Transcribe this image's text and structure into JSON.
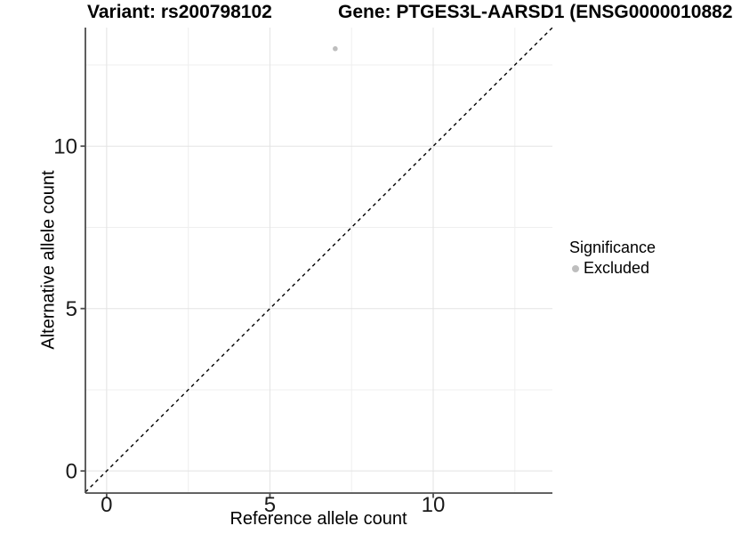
{
  "title": {
    "variant": "Variant: rs200798102",
    "gene": "Gene: PTGES3L-AARSD1 (ENSG0000010882"
  },
  "axes": {
    "x_label": "Reference allele count",
    "y_label": "Alternative allele count"
  },
  "legend": {
    "title": "Significance",
    "items": [
      {
        "label": "Excluded",
        "color": "#bebebe"
      }
    ]
  },
  "colors": {
    "point": "#bebebe",
    "grid_major": "#e3e3e3",
    "grid_minor": "#efefef",
    "axis_line": "#4d4d4d",
    "tick_text": "#1a1a1a",
    "reference_line": "#000000",
    "background": "#ffffff"
  },
  "chart_data": {
    "type": "scatter",
    "title": "Variant: rs200798102   Gene: PTGES3L-AARSD1 (ENSG0000010882",
    "xlabel": "Reference allele count",
    "ylabel": "Alternative allele count",
    "xlim": [
      -0.65,
      13.65
    ],
    "ylim": [
      -0.68,
      13.65
    ],
    "x_ticks": [
      0,
      5,
      10
    ],
    "y_ticks": [
      0,
      5,
      10
    ],
    "minor_ticks_x": [
      2.5,
      7.5,
      12.5
    ],
    "minor_ticks_y": [
      2.5,
      7.5,
      12.5
    ],
    "grid": true,
    "legend_position": "right",
    "series": [
      {
        "name": "Excluded",
        "color": "#bebebe",
        "points": [
          {
            "x": 7,
            "y": 13
          }
        ]
      }
    ],
    "reference_line": {
      "type": "identity y=x",
      "style": "dashed",
      "color": "#000000"
    }
  }
}
